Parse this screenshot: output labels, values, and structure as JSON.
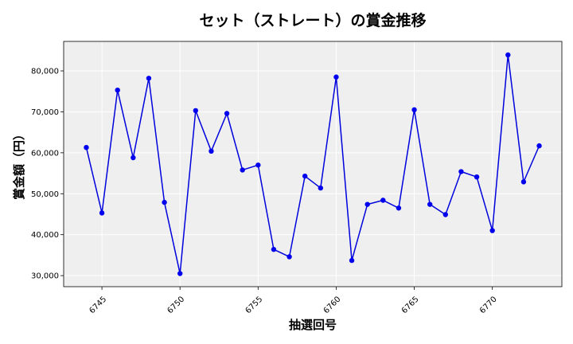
{
  "chart_data": {
    "type": "line",
    "title": "セット（ストレート）の賞金推移",
    "xlabel": "抽選回号",
    "ylabel": "賞金額（円）",
    "x": [
      6744,
      6745,
      6746,
      6747,
      6748,
      6749,
      6750,
      6751,
      6752,
      6753,
      6754,
      6755,
      6756,
      6757,
      6758,
      6759,
      6760,
      6761,
      6762,
      6763,
      6764,
      6765,
      6766,
      6767,
      6768,
      6769,
      6770,
      6771,
      6772,
      6773
    ],
    "series": [
      {
        "values": [
          61300,
          45300,
          75300,
          58800,
          78200,
          47900,
          30500,
          70300,
          60400,
          69600,
          55800,
          57000,
          36400,
          34600,
          54300,
          51400,
          78500,
          33700,
          47400,
          48400,
          46500,
          70500,
          47400,
          44900,
          55400,
          54100,
          41000,
          83900,
          52900,
          61700
        ]
      }
    ],
    "xticks": [
      6745,
      6750,
      6755,
      6760,
      6765,
      6770
    ],
    "xtick_labels": [
      "6745",
      "6750",
      "6755",
      "6760",
      "6765",
      "6770"
    ],
    "yticks": [
      30000,
      40000,
      50000,
      60000,
      70000,
      80000
    ],
    "ytick_labels": [
      "30,000",
      "40,000",
      "50,000",
      "60,000",
      "70,000",
      "80,000"
    ],
    "xlim": [
      6742.55,
      6774.45
    ],
    "ylim": [
      27300,
      87200
    ],
    "grid": true,
    "colors": {
      "line": "#0000dd",
      "marker": "#0000ee",
      "plot_bg": "#efefef",
      "grid": "#ffffff"
    }
  }
}
